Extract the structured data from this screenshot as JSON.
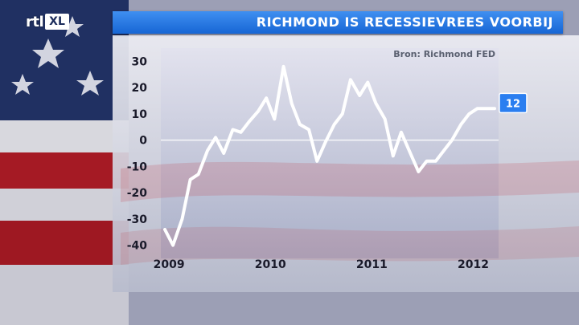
{
  "logo": {
    "text": "rtl",
    "box_text": "XL"
  },
  "title": "RICHMOND IS RECESSIEVREES VOORBIJ",
  "colors": {
    "title_bar": "#2b7ae6",
    "line": "#ffffff",
    "label_box": "#2a7ef0",
    "panel_top": "#f1f1f6",
    "panel_bottom": "#c3c6d6",
    "flag_red": "#b01c26",
    "flag_blue": "#1b2b5b"
  },
  "chart_data": {
    "type": "line",
    "title": "",
    "source": "Bron: Richmond FED",
    "xlabel": "",
    "ylabel": "",
    "ylim": [
      -45,
      35
    ],
    "xlim": [
      2008.92,
      2012.25
    ],
    "yticks": [
      30,
      20,
      10,
      0,
      -10,
      -20,
      -30,
      -40
    ],
    "xticks": [
      {
        "label": "2009",
        "x": 2009.0
      },
      {
        "label": "2010",
        "x": 2010.0
      },
      {
        "label": "2011",
        "x": 2011.0
      },
      {
        "label": "2012",
        "x": 2012.0
      }
    ],
    "zero_line": true,
    "end_label": "12",
    "series": [
      {
        "x": [
          2008.96,
          2009.04,
          2009.13,
          2009.21,
          2009.29,
          2009.38,
          2009.46,
          2009.54,
          2009.63,
          2009.71,
          2009.79,
          2009.88,
          2009.96,
          2010.04,
          2010.13,
          2010.21,
          2010.29,
          2010.38,
          2010.46,
          2010.54,
          2010.63,
          2010.71,
          2010.79,
          2010.88,
          2010.96,
          2011.04,
          2011.13,
          2011.21,
          2011.29,
          2011.38,
          2011.46,
          2011.54,
          2011.63,
          2011.71,
          2011.79,
          2011.88,
          2011.96,
          2012.04,
          2012.13,
          2012.21
        ],
        "values": [
          -34,
          -40,
          -30,
          -15,
          -13,
          -4,
          1,
          -5,
          4,
          3,
          7,
          11,
          16,
          8,
          28,
          14,
          6,
          4,
          -8,
          -1,
          6,
          10,
          23,
          17,
          22,
          14,
          8,
          -6,
          3,
          -5,
          -12,
          -8,
          -8,
          -4,
          0,
          6,
          10,
          12,
          12,
          12
        ]
      }
    ]
  }
}
